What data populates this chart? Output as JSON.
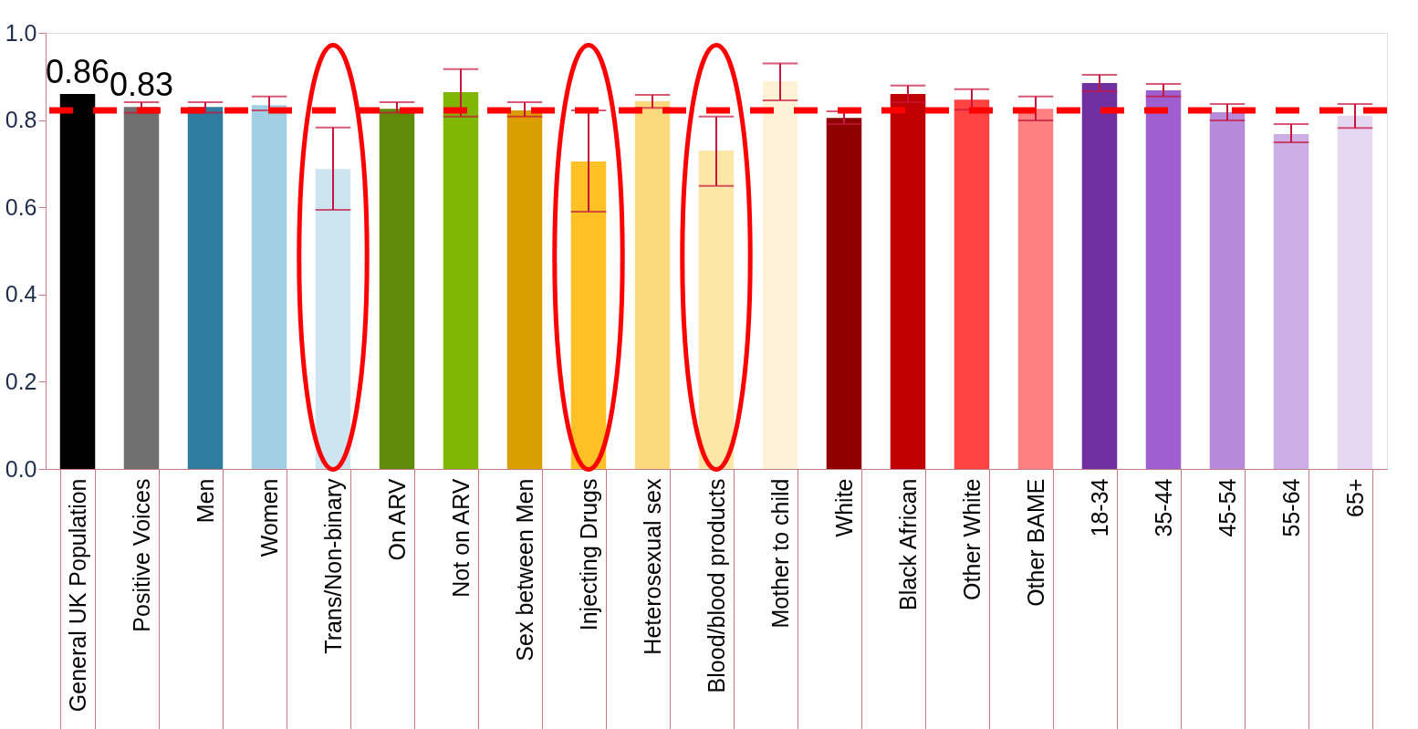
{
  "chart_data": {
    "type": "bar",
    "categories": [
      "General UK Population",
      "Positive Voices",
      "Men",
      "Women",
      "Trans/Non-binary",
      "On ARV",
      "Not on ARV",
      "Sex between Men",
      "Injecting Drugs",
      "Heterosexual sex",
      "Blood/blood products",
      "Mother to child",
      "White",
      "Black African",
      "Other White",
      "Other BAME",
      "18-34",
      "35-44",
      "45-54",
      "55-64",
      "65+"
    ],
    "values": [
      0.86,
      0.83,
      0.83,
      0.834,
      0.688,
      0.826,
      0.864,
      0.822,
      0.705,
      0.843,
      0.73,
      0.889,
      0.805,
      0.86,
      0.847,
      0.826,
      0.885,
      0.868,
      0.818,
      0.768,
      0.81
    ],
    "colors": [
      "#000000",
      "#6f6f6f",
      "#2e7ca0",
      "#a0cfe4",
      "#cce5f1",
      "#5f8a0a",
      "#80b705",
      "#d99e00",
      "#ffc125",
      "#fdd97d",
      "#fee6a6",
      "#fff2d5",
      "#8f0000",
      "#c00000",
      "#ff4242",
      "#ff8080",
      "#7030a0",
      "#9f5fce",
      "#b68ad9",
      "#cdade5",
      "#e5d6f1"
    ],
    "errors": [
      null,
      [
        0.817,
        0.841
      ],
      [
        0.817,
        0.841
      ],
      [
        0.822,
        0.854
      ],
      [
        0.594,
        0.783
      ],
      [
        0.817,
        0.841
      ],
      [
        0.808,
        0.917
      ],
      [
        0.808,
        0.841
      ],
      [
        0.59,
        0.822
      ],
      [
        0.828,
        0.858
      ],
      [
        0.649,
        0.808
      ],
      [
        0.845,
        0.93
      ],
      [
        0.791,
        0.82
      ],
      [
        0.841,
        0.879
      ],
      [
        0.824,
        0.871
      ],
      [
        0.799,
        0.854
      ],
      [
        0.866,
        0.904
      ],
      [
        0.854,
        0.883
      ],
      [
        0.799,
        0.837
      ],
      [
        0.749,
        0.791
      ],
      [
        0.782,
        0.837
      ]
    ],
    "value_labels": [
      "0.86",
      "0.83",
      null,
      null,
      null,
      null,
      null,
      null,
      null,
      null,
      null,
      null,
      null,
      null,
      null,
      null,
      null,
      null,
      null,
      null,
      null
    ],
    "ylim": [
      0,
      1
    ],
    "yticks": [
      {
        "value": 0,
        "label": "0.0"
      },
      {
        "value": 0.2,
        "label": "0.2"
      },
      {
        "value": 0.4,
        "label": "0.4"
      },
      {
        "value": 0.6,
        "label": "0.6"
      },
      {
        "value": 0.8,
        "label": "0.8"
      },
      {
        "value": 1,
        "label": "1.0"
      }
    ],
    "ref_lines": [
      {
        "axis": "y",
        "value": 0.822,
        "color": "#ff0000",
        "line_style": "dashed"
      }
    ],
    "grid": false
  }
}
